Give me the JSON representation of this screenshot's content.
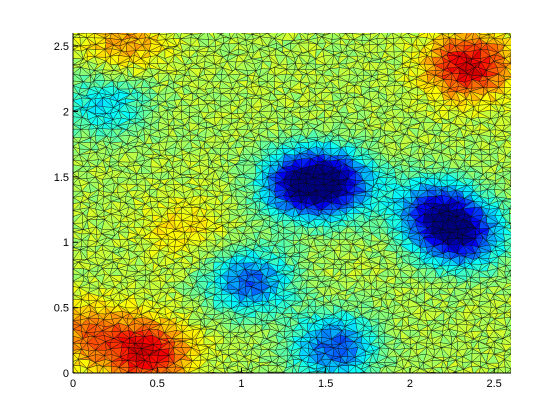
{
  "chart_data": {
    "type": "heatmap",
    "subtype": "triangulated-mesh",
    "title": "",
    "xlabel": "",
    "ylabel": "",
    "xlim": [
      0,
      2.6
    ],
    "ylim": [
      0,
      2.6
    ],
    "x_ticks": [
      0,
      0.5,
      1,
      1.5,
      2,
      2.5
    ],
    "y_ticks": [
      0,
      0.5,
      1,
      1.5,
      2,
      2.5
    ],
    "x_tick_labels": [
      "0",
      "0.5",
      "1",
      "1.5",
      "2",
      "2.5"
    ],
    "y_tick_labels": [
      "0",
      "0.5",
      "1",
      "1.5",
      "2",
      "2.5"
    ],
    "grid": false,
    "colormap": "jet",
    "edge_color": "#000000",
    "value_range": [
      0,
      1
    ],
    "blobs": [
      {
        "region": "low",
        "x": 1.35,
        "y": 1.45,
        "value": 0.12
      },
      {
        "region": "low",
        "x": 1.55,
        "y": 1.45,
        "value": 0.14
      },
      {
        "region": "low",
        "x": 2.3,
        "y": 1.05,
        "value": 0.1
      },
      {
        "region": "low",
        "x": 2.15,
        "y": 1.25,
        "value": 0.18
      },
      {
        "region": "low",
        "x": 1.05,
        "y": 0.7,
        "value": 0.22
      },
      {
        "region": "low",
        "x": 1.55,
        "y": 0.2,
        "value": 0.2
      },
      {
        "region": "low",
        "x": 0.2,
        "y": 2.05,
        "value": 0.35
      },
      {
        "region": "high",
        "x": 2.35,
        "y": 2.35,
        "value": 0.92
      },
      {
        "region": "high",
        "x": 0.45,
        "y": 0.15,
        "value": 0.9
      },
      {
        "region": "high",
        "x": 0.1,
        "y": 0.3,
        "value": 0.75
      },
      {
        "region": "high",
        "x": 0.3,
        "y": 2.55,
        "value": 0.72
      },
      {
        "region": "high",
        "x": 0.65,
        "y": 1.1,
        "value": 0.65
      }
    ]
  }
}
